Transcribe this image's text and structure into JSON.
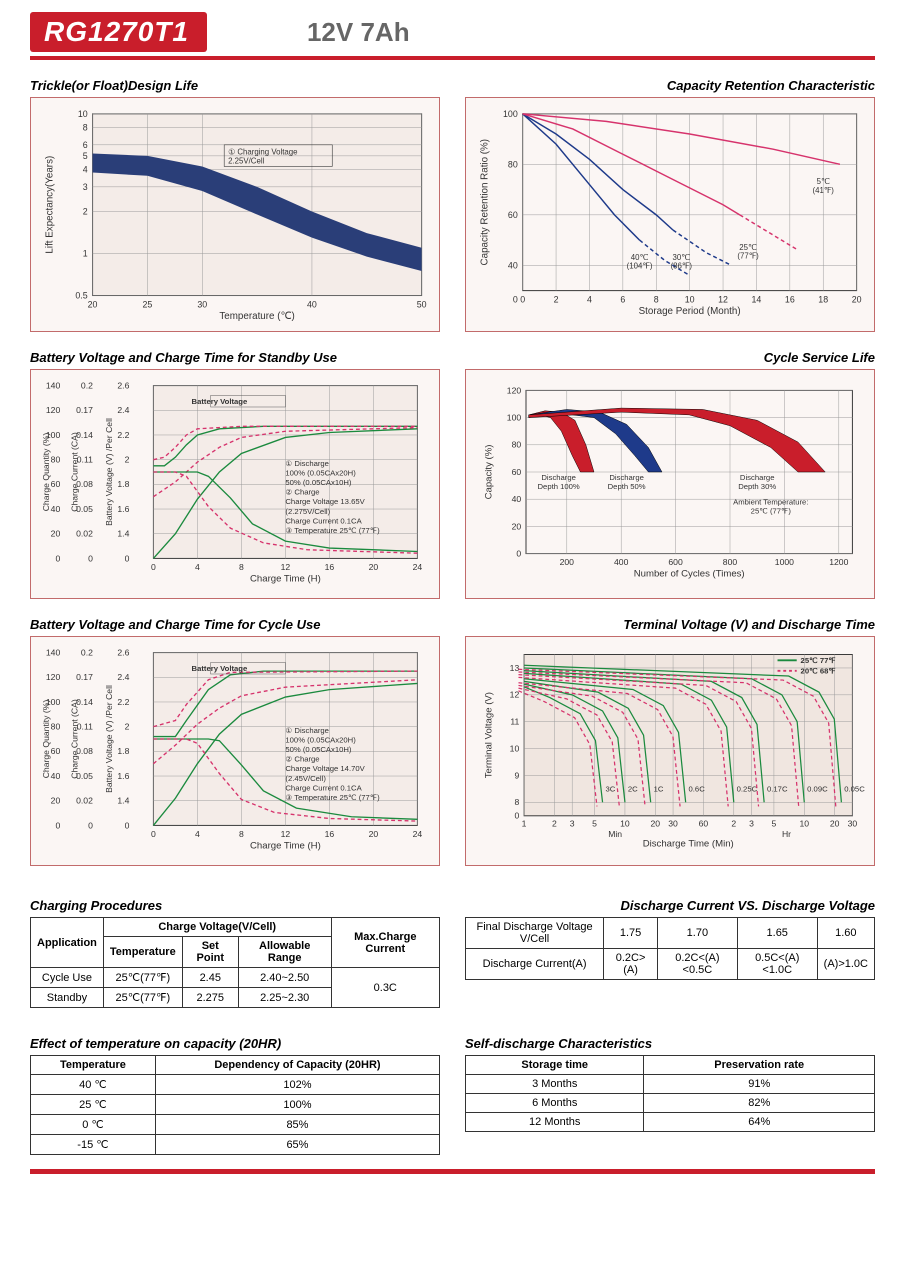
{
  "header": {
    "model": "RG1270T1",
    "spec": "12V  7Ah"
  },
  "charts": {
    "trickle": {
      "title": "Trickle(or Float)Design Life",
      "type": "area-band",
      "xlabel": "Temperature (℃)",
      "ylabel": "Lift  Expectancy(Years)",
      "x_ticks": [
        20,
        25,
        30,
        40,
        50
      ],
      "y_ticks": [
        0.5,
        1,
        2,
        3,
        4,
        5,
        6,
        8,
        10
      ],
      "y_scale": "log",
      "band_color": "#2a3e78",
      "band_upper": [
        [
          20,
          5.2
        ],
        [
          25,
          5.0
        ],
        [
          30,
          4.2
        ],
        [
          35,
          3.0
        ],
        [
          40,
          2.0
        ],
        [
          45,
          1.4
        ],
        [
          50,
          1.1
        ]
      ],
      "band_lower": [
        [
          20,
          3.8
        ],
        [
          25,
          3.6
        ],
        [
          30,
          2.8
        ],
        [
          35,
          1.9
        ],
        [
          40,
          1.3
        ],
        [
          45,
          0.95
        ],
        [
          50,
          0.75
        ]
      ],
      "annotation": "① Charging Voltage 2.25V/Cell",
      "bg": "#f4ece8",
      "grid": "#a89a92",
      "border": "#c26b6b"
    },
    "retention": {
      "title": "Capacity Retention Characteristic",
      "type": "line",
      "xlabel": "Storage Period (Month)",
      "ylabel": "Capacity Retention Ratio (%)",
      "x_ticks": [
        0,
        2,
        4,
        6,
        8,
        10,
        12,
        14,
        16,
        18,
        20
      ],
      "y_ticks": [
        0,
        40,
        60,
        80,
        100
      ],
      "series": [
        {
          "label": "40℃ (104℉)",
          "color": "#1e3a8a",
          "dash": "none",
          "points": [
            [
              0,
              100
            ],
            [
              2,
              88
            ],
            [
              4,
              72
            ],
            [
              5.5,
              60
            ],
            [
              7,
              50
            ]
          ],
          "dashed_tail": [
            [
              7,
              50
            ],
            [
              8.5,
              42
            ],
            [
              10,
              36
            ]
          ]
        },
        {
          "label": "30℃ (86℉)",
          "color": "#1e3a8a",
          "dash": "none",
          "points": [
            [
              0,
              100
            ],
            [
              2,
              92
            ],
            [
              4,
              82
            ],
            [
              6,
              70
            ],
            [
              8,
              60
            ],
            [
              9,
              54
            ]
          ],
          "dashed_tail": [
            [
              9,
              54
            ],
            [
              11,
              45
            ],
            [
              12.5,
              40
            ]
          ]
        },
        {
          "label": "25℃ (77℉)",
          "color": "#d6336c",
          "dash": "none",
          "points": [
            [
              0,
              100
            ],
            [
              3,
              94
            ],
            [
              6,
              84
            ],
            [
              9,
              74
            ],
            [
              12,
              64
            ],
            [
              13,
              60
            ]
          ],
          "dashed_tail": [
            [
              13,
              60
            ],
            [
              15,
              52
            ],
            [
              16.5,
              46
            ]
          ]
        },
        {
          "label": "5℃ (41℉)",
          "color": "#d6336c",
          "dash": "none",
          "points": [
            [
              0,
              100
            ],
            [
              5,
              97
            ],
            [
              10,
              92
            ],
            [
              15,
              86
            ],
            [
              19,
              80
            ]
          ]
        }
      ],
      "bg": "#fbf6f4",
      "grid": "#a89a92"
    },
    "standby": {
      "title": "Battery Voltage and Charge Time for Standby Use",
      "xlabel": "Charge Time (H)",
      "y1label": "Charge Quantity (%)",
      "y2label": "Charge Current (CA)",
      "y3label": "Battery Voltage (V) /Per Cell",
      "x_ticks": [
        0,
        4,
        8,
        12,
        16,
        20,
        24
      ],
      "y1_ticks": [
        0,
        20,
        40,
        60,
        80,
        100,
        120,
        140
      ],
      "y2_ticks": [
        0,
        0.02,
        0.05,
        0.08,
        0.11,
        0.14,
        0.17,
        0.2
      ],
      "y3_ticks": [
        0,
        1.4,
        1.6,
        1.8,
        2.0,
        2.2,
        2.4,
        2.6
      ],
      "notes": [
        "① Discharge",
        "100% (0.05CAx20H)",
        "50% (0.05CAx10H)",
        "② Charge",
        "Charge Voltage 13.65V",
        "(2.275V/Cell)",
        "Charge Current 0.1CA",
        "③ Temperature 25℃ (77℉)"
      ],
      "curves": {
        "voltage_100": {
          "color": "#1b8a3e",
          "dash": "none",
          "pts": [
            [
              0,
              1.95
            ],
            [
              1,
              1.95
            ],
            [
              2,
              2.02
            ],
            [
              3,
              2.12
            ],
            [
              4,
              2.2
            ],
            [
              6,
              2.25
            ],
            [
              10,
              2.27
            ],
            [
              24,
              2.27
            ]
          ]
        },
        "voltage_50": {
          "color": "#d6336c",
          "dash": "4,3",
          "pts": [
            [
              0,
              2.0
            ],
            [
              1,
              2.02
            ],
            [
              2,
              2.1
            ],
            [
              3,
              2.2
            ],
            [
              4,
              2.25
            ],
            [
              8,
              2.27
            ],
            [
              24,
              2.27
            ]
          ]
        },
        "qty_100": {
          "color": "#1b8a3e",
          "dash": "none",
          "pts": [
            [
              0,
              0
            ],
            [
              2,
              20
            ],
            [
              4,
              48
            ],
            [
              6,
              70
            ],
            [
              8,
              85
            ],
            [
              12,
              98
            ],
            [
              16,
              102
            ],
            [
              24,
              105
            ]
          ]
        },
        "qty_50": {
          "color": "#d6336c",
          "dash": "4,3",
          "pts": [
            [
              0,
              50
            ],
            [
              2,
              62
            ],
            [
              4,
              78
            ],
            [
              6,
              90
            ],
            [
              8,
              98
            ],
            [
              12,
              103
            ],
            [
              24,
              106
            ]
          ]
        },
        "current_100": {
          "color": "#1b8a3e",
          "dash": "none",
          "pts": [
            [
              0,
              0.1
            ],
            [
              4,
              0.1
            ],
            [
              5,
              0.095
            ],
            [
              7,
              0.07
            ],
            [
              9,
              0.04
            ],
            [
              12,
              0.02
            ],
            [
              16,
              0.012
            ],
            [
              24,
              0.008
            ]
          ]
        },
        "current_50": {
          "color": "#d6336c",
          "dash": "4,3",
          "pts": [
            [
              0,
              0.1
            ],
            [
              2,
              0.1
            ],
            [
              3,
              0.095
            ],
            [
              5,
              0.06
            ],
            [
              7,
              0.035
            ],
            [
              10,
              0.018
            ],
            [
              14,
              0.01
            ],
            [
              24,
              0.006
            ]
          ]
        }
      },
      "bg": "#f4ece8",
      "grid": "#a89a92"
    },
    "cycle_life": {
      "title": "Cycle Service Life",
      "xlabel": "Number of Cycles (Times)",
      "ylabel": "Capacity (%)",
      "x_ticks": [
        200,
        400,
        600,
        800,
        1000,
        1200
      ],
      "y_ticks": [
        0,
        20,
        40,
        60,
        80,
        100,
        120
      ],
      "ambient": "Ambient Temperature: 25℃ (77℉)",
      "bands": [
        {
          "label": "Discharge Depth 100%",
          "color": "#c91e2b",
          "upper": [
            [
              60,
              102
            ],
            [
              120,
              105
            ],
            [
              180,
              104
            ],
            [
              230,
              98
            ],
            [
              270,
              80
            ],
            [
              300,
              60
            ]
          ],
          "lower": [
            [
              60,
              100
            ],
            [
              100,
              102
            ],
            [
              140,
              100
            ],
            [
              180,
              90
            ],
            [
              220,
              72
            ],
            [
              250,
              60
            ]
          ]
        },
        {
          "label": "Discharge Depth 50%",
          "color": "#1e3a8a",
          "upper": [
            [
              60,
              102
            ],
            [
              200,
              106
            ],
            [
              320,
              104
            ],
            [
              420,
              95
            ],
            [
              500,
              78
            ],
            [
              550,
              60
            ]
          ],
          "lower": [
            [
              60,
              100
            ],
            [
              180,
              103
            ],
            [
              300,
              100
            ],
            [
              380,
              88
            ],
            [
              450,
              72
            ],
            [
              500,
              60
            ]
          ]
        },
        {
          "label": "Discharge Depth 30%",
          "color": "#c91e2b",
          "upper": [
            [
              60,
              102
            ],
            [
              400,
              107
            ],
            [
              700,
              106
            ],
            [
              900,
              98
            ],
            [
              1050,
              82
            ],
            [
              1150,
              60
            ]
          ],
          "lower": [
            [
              60,
              100
            ],
            [
              400,
              104
            ],
            [
              650,
              102
            ],
            [
              800,
              94
            ],
            [
              950,
              78
            ],
            [
              1050,
              60
            ]
          ]
        }
      ],
      "bg": "#fbf6f4",
      "grid": "#a89a92"
    },
    "cycle_charge": {
      "title": "Battery Voltage and Charge Time for Cycle Use",
      "xlabel": "Charge Time (H)",
      "notes": [
        "① Discharge",
        "100% (0.05CAx20H)",
        "50% (0.05CAx10H)",
        "② Charge",
        "Charge Voltage 14.70V",
        "(2.45V/Cell)",
        "Charge Current 0.1CA",
        "③ Temperature 25℃ (77℉)"
      ],
      "x_ticks": [
        0,
        4,
        8,
        12,
        16,
        20,
        24
      ],
      "y1_ticks": [
        0,
        20,
        40,
        60,
        80,
        100,
        120,
        140
      ],
      "y2_ticks": [
        0,
        0.02,
        0.05,
        0.08,
        0.11,
        0.14,
        0.17,
        0.2
      ],
      "y3_ticks": [
        0,
        1.4,
        1.6,
        1.8,
        2.0,
        2.2,
        2.4,
        2.6
      ],
      "curves": {
        "voltage_100": {
          "color": "#1b8a3e",
          "dash": "none",
          "pts": [
            [
              0,
              1.92
            ],
            [
              2,
              1.92
            ],
            [
              3,
              2.05
            ],
            [
              5,
              2.3
            ],
            [
              7,
              2.42
            ],
            [
              10,
              2.45
            ],
            [
              24,
              2.45
            ]
          ]
        },
        "voltage_50": {
          "color": "#d6336c",
          "dash": "4,3",
          "pts": [
            [
              0,
              2.0
            ],
            [
              2,
              2.05
            ],
            [
              3,
              2.18
            ],
            [
              5,
              2.38
            ],
            [
              7,
              2.44
            ],
            [
              24,
              2.45
            ]
          ]
        },
        "qty_100": {
          "color": "#1b8a3e",
          "dash": "none",
          "pts": [
            [
              0,
              0
            ],
            [
              2,
              22
            ],
            [
              4,
              50
            ],
            [
              6,
              74
            ],
            [
              8,
              90
            ],
            [
              12,
              104
            ],
            [
              16,
              110
            ],
            [
              24,
              115
            ]
          ]
        },
        "qty_50": {
          "color": "#d6336c",
          "dash": "4,3",
          "pts": [
            [
              0,
              50
            ],
            [
              2,
              65
            ],
            [
              4,
              82
            ],
            [
              6,
              95
            ],
            [
              8,
              105
            ],
            [
              12,
              112
            ],
            [
              24,
              118
            ]
          ]
        },
        "current_100": {
          "color": "#1b8a3e",
          "dash": "none",
          "pts": [
            [
              0,
              0.1
            ],
            [
              5,
              0.1
            ],
            [
              6,
              0.098
            ],
            [
              8,
              0.07
            ],
            [
              10,
              0.04
            ],
            [
              13,
              0.02
            ],
            [
              18,
              0.01
            ],
            [
              24,
              0.007
            ]
          ]
        },
        "current_50": {
          "color": "#d6336c",
          "dash": "4,3",
          "pts": [
            [
              0,
              0.1
            ],
            [
              3,
              0.1
            ],
            [
              4,
              0.095
            ],
            [
              6,
              0.06
            ],
            [
              8,
              0.03
            ],
            [
              11,
              0.015
            ],
            [
              16,
              0.008
            ],
            [
              24,
              0.005
            ]
          ]
        }
      },
      "bg": "#f4ece8",
      "grid": "#a89a92"
    },
    "discharge": {
      "title": "Terminal Voltage (V) and Discharge Time",
      "xlabel": "Discharge Time (Min)",
      "ylabel": "Terminal Voltage (V)",
      "y_ticks": [
        0,
        8,
        9,
        10,
        11,
        12,
        13
      ],
      "x_ticks_min": [
        1,
        2,
        3,
        5,
        10,
        20,
        30,
        60
      ],
      "x_ticks_hr": [
        2,
        3,
        5,
        10,
        20,
        30
      ],
      "legend": [
        {
          "t": "25℃ 77℉",
          "c": "#1b8a3e",
          "d": "none"
        },
        {
          "t": "20℃ 68℉",
          "c": "#d6336c",
          "d": "4,3"
        }
      ],
      "rates": [
        "3C",
        "2C",
        "1C",
        "0.6C",
        "0.25C",
        "0.17C",
        "0.09C",
        "0.05C"
      ],
      "bg": "#f0e6e0",
      "grid": "#a89a92"
    }
  },
  "charging_proc": {
    "title": "Charging Procedures",
    "headers": {
      "app": "Application",
      "cv": "Charge Voltage(V/Cell)",
      "temp": "Temperature",
      "sp": "Set Point",
      "ar": "Allowable Range",
      "max": "Max.Charge Current"
    },
    "rows": [
      {
        "app": "Cycle Use",
        "temp": "25℃(77℉)",
        "sp": "2.45",
        "ar": "2.40~2.50"
      },
      {
        "app": "Standby",
        "temp": "25℃(77℉)",
        "sp": "2.275",
        "ar": "2.25~2.30"
      }
    ],
    "max": "0.3C"
  },
  "discharge_table": {
    "title": "Discharge Current VS. Discharge Voltage",
    "r1_label": "Final Discharge Voltage V/Cell",
    "r1": [
      "1.75",
      "1.70",
      "1.65",
      "1.60"
    ],
    "r2_label": "Discharge Current(A)",
    "r2": [
      "0.2C>(A)",
      "0.2C<(A)<0.5C",
      "0.5C<(A)<1.0C",
      "(A)>1.0C"
    ]
  },
  "temp_effect": {
    "title": "Effect of temperature on capacity (20HR)",
    "h1": "Temperature",
    "h2": "Dependency of Capacity (20HR)",
    "rows": [
      [
        "40 ℃",
        "102%"
      ],
      [
        "25 ℃",
        "100%"
      ],
      [
        "0 ℃",
        "85%"
      ],
      [
        "-15 ℃",
        "65%"
      ]
    ]
  },
  "self_discharge": {
    "title": "Self-discharge Characteristics",
    "h1": "Storage time",
    "h2": "Preservation rate",
    "rows": [
      [
        "3 Months",
        "91%"
      ],
      [
        "6 Months",
        "82%"
      ],
      [
        "12 Months",
        "64%"
      ]
    ]
  }
}
